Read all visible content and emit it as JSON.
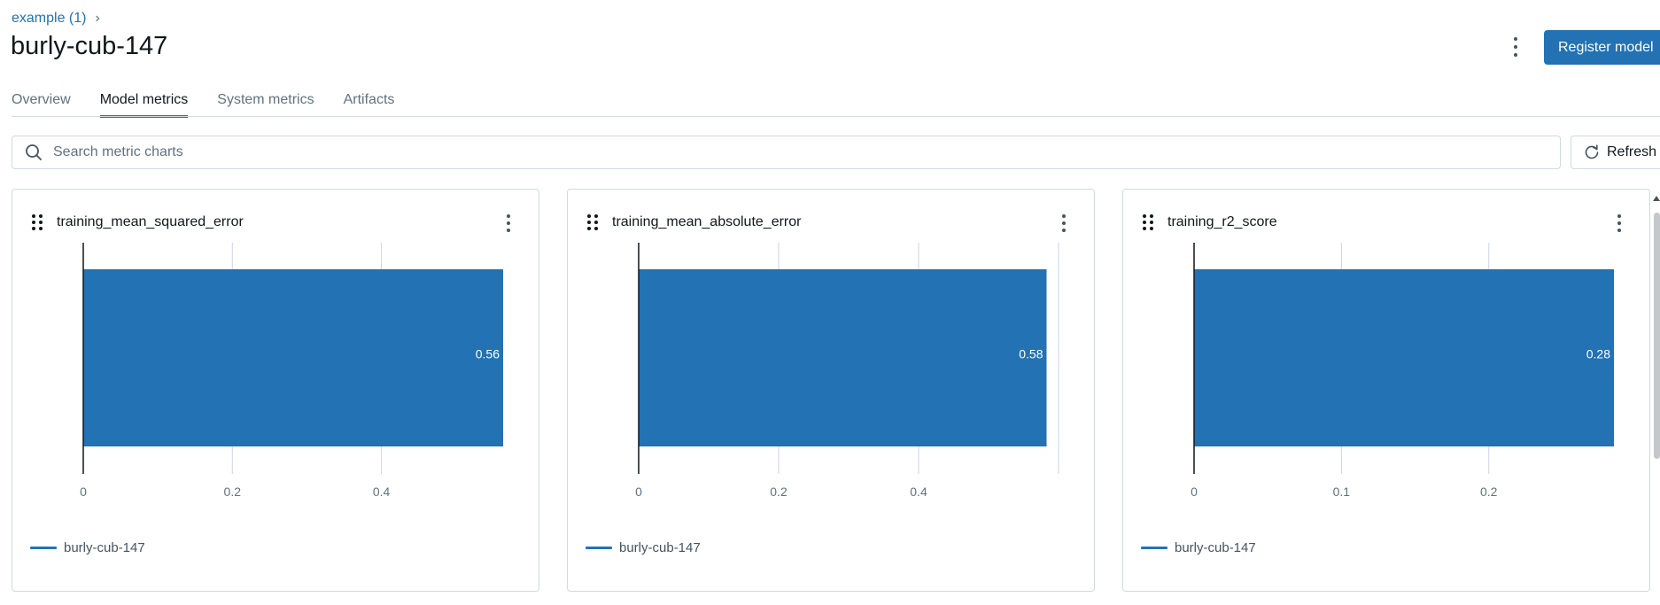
{
  "breadcrumb": {
    "experiment": "example (1)",
    "separator": "›"
  },
  "page": {
    "title": "burly-cub-147"
  },
  "header": {
    "register_label": "Register model"
  },
  "tabs": [
    {
      "label": "Overview"
    },
    {
      "label": "Model metrics"
    },
    {
      "label": "System metrics"
    },
    {
      "label": "Artifacts"
    }
  ],
  "search": {
    "placeholder": "Search metric charts",
    "value": ""
  },
  "refresh": {
    "label": "Refresh"
  },
  "colors": {
    "accent": "#2272b4",
    "bar": "#2272b4"
  },
  "chart_data": [
    {
      "type": "bar",
      "orientation": "horizontal",
      "title": "training_mean_squared_error",
      "categories": [
        "burly-cub-147"
      ],
      "values": [
        0.5633
      ],
      "value_label": "0.56",
      "xlim": [
        0,
        0.5633
      ],
      "xticks": [
        0,
        0.2,
        0.4
      ],
      "xtick_labels": [
        "0",
        "0.2",
        "0.4"
      ],
      "legend": [
        "burly-cub-147"
      ]
    },
    {
      "type": "bar",
      "orientation": "horizontal",
      "title": "training_mean_absolute_error",
      "categories": [
        "burly-cub-147"
      ],
      "values": [
        0.5829
      ],
      "value_label": "0.58",
      "xlim": [
        0,
        0.6
      ],
      "xticks": [
        0,
        0.2,
        0.4
      ],
      "xtick_labels": [
        "0",
        "0.2",
        "0.4"
      ],
      "legend": [
        "burly-cub-147"
      ]
    },
    {
      "type": "bar",
      "orientation": "horizontal",
      "title": "training_r2_score",
      "categories": [
        "burly-cub-147"
      ],
      "values": [
        0.2849
      ],
      "value_label": "0.28",
      "xlim": [
        0,
        0.2849
      ],
      "xticks": [
        0,
        0.1,
        0.2
      ],
      "xtick_labels": [
        "0",
        "0.1",
        "0.2"
      ],
      "legend": [
        "burly-cub-147"
      ]
    }
  ]
}
